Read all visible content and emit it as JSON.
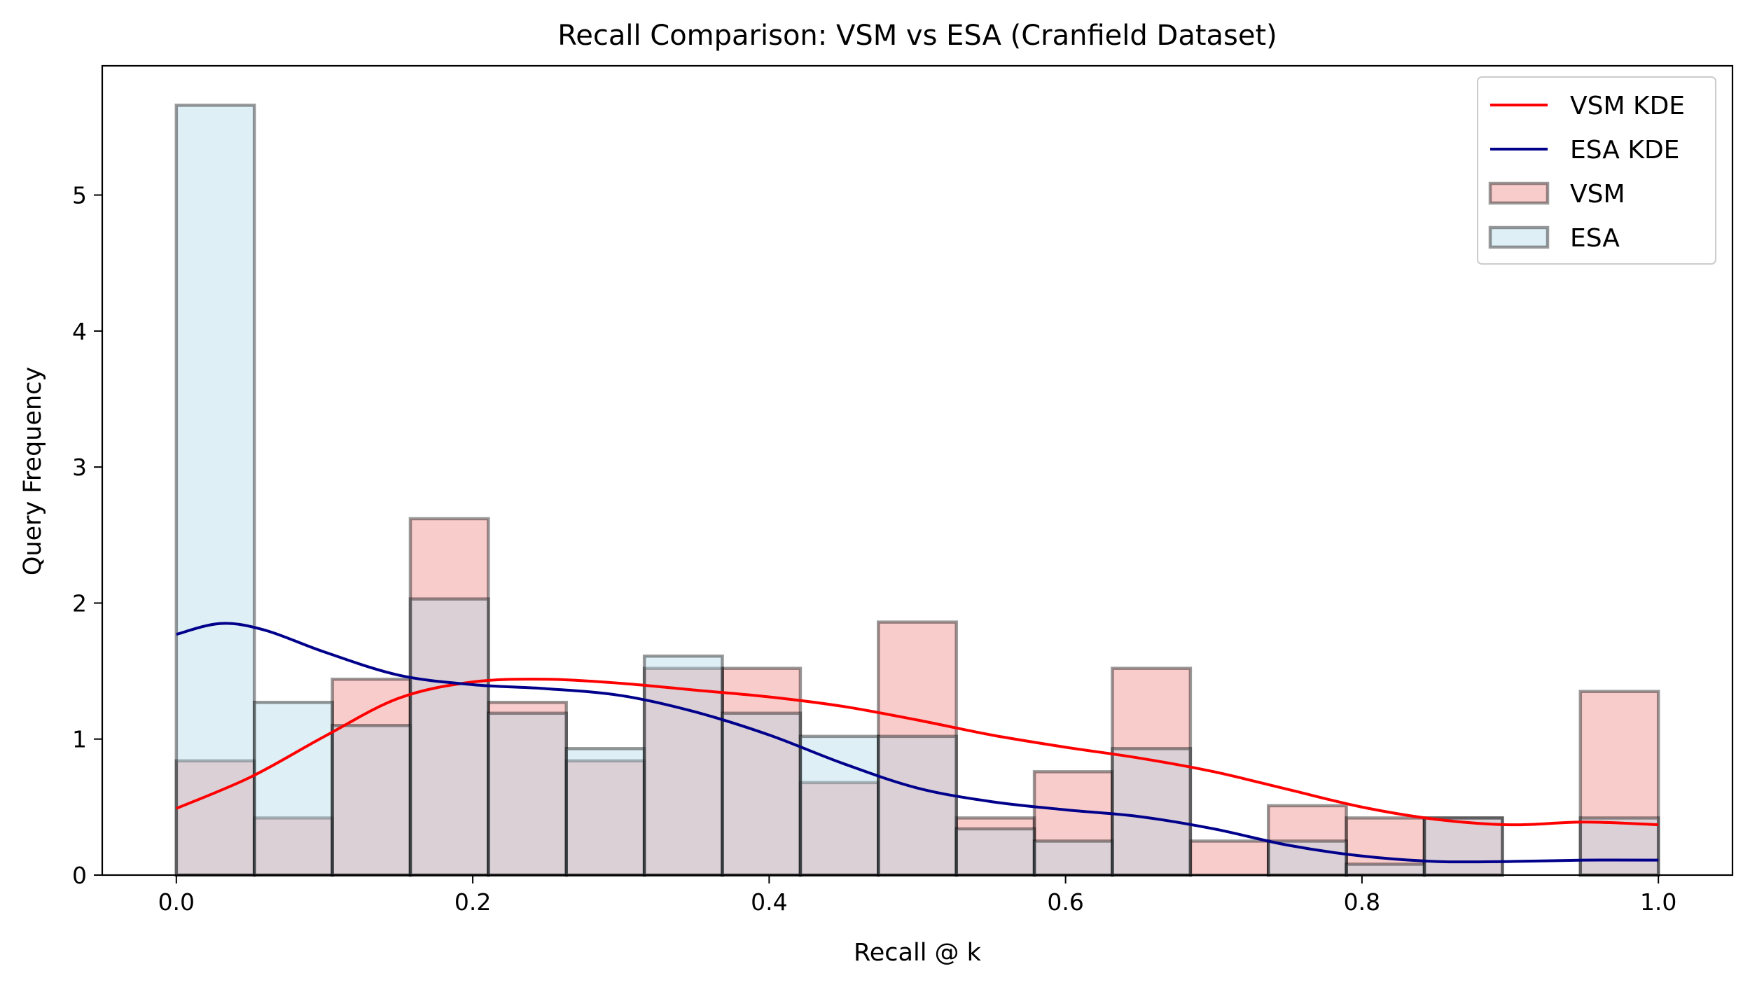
{
  "chart_data": {
    "type": "bar",
    "title": "Recall Comparison: VSM vs ESA (Cranfield Dataset)",
    "xlabel": "Recall @ k",
    "ylabel": "Query Frequency",
    "xlim": [
      -0.05,
      1.05
    ],
    "ylim": [
      0,
      5.95
    ],
    "xticks": [
      0.0,
      0.2,
      0.4,
      0.6,
      0.8,
      1.0
    ],
    "xtick_labels": [
      "0.0",
      "0.2",
      "0.4",
      "0.6",
      "0.8",
      "1.0"
    ],
    "yticks": [
      0,
      1,
      2,
      3,
      4,
      5
    ],
    "ytick_labels": [
      "0",
      "1",
      "2",
      "3",
      "4",
      "5"
    ],
    "grid": false,
    "legend_position": "top-right",
    "bins": 19,
    "bin_range": [
      0,
      1
    ],
    "histograms": [
      {
        "name": "VSM",
        "fill": "#f08080",
        "values": [
          0.84,
          0.42,
          1.44,
          2.62,
          1.27,
          0.84,
          1.52,
          1.52,
          0.68,
          1.86,
          0.42,
          0.76,
          1.52,
          0.25,
          0.51,
          0.42,
          0.42,
          0.0,
          1.35
        ]
      },
      {
        "name": "ESA",
        "fill": "#add8e6",
        "values": [
          5.66,
          1.27,
          1.1,
          2.03,
          1.19,
          0.93,
          1.61,
          1.19,
          1.02,
          1.02,
          0.34,
          0.25,
          0.93,
          0.0,
          0.25,
          0.08,
          0.42,
          0.0,
          0.42
        ]
      }
    ],
    "kde": [
      {
        "name": "VSM KDE",
        "color": "#ff0000",
        "x": [
          0.0,
          0.05,
          0.1,
          0.15,
          0.2,
          0.25,
          0.3,
          0.35,
          0.4,
          0.45,
          0.5,
          0.55,
          0.6,
          0.65,
          0.7,
          0.75,
          0.8,
          0.85,
          0.9,
          0.95,
          1.0
        ],
        "y": [
          0.49,
          0.72,
          1.02,
          1.3,
          1.42,
          1.44,
          1.41,
          1.36,
          1.31,
          1.24,
          1.14,
          1.03,
          0.94,
          0.86,
          0.76,
          0.63,
          0.5,
          0.41,
          0.37,
          0.39,
          0.37
        ]
      },
      {
        "name": "ESA KDE",
        "color": "#00008b",
        "x": [
          0.0,
          0.03,
          0.06,
          0.1,
          0.15,
          0.2,
          0.25,
          0.3,
          0.35,
          0.4,
          0.45,
          0.5,
          0.55,
          0.6,
          0.65,
          0.7,
          0.75,
          0.8,
          0.85,
          0.9,
          0.95,
          1.0
        ],
        "y": [
          1.77,
          1.85,
          1.8,
          1.64,
          1.47,
          1.4,
          1.37,
          1.32,
          1.2,
          1.03,
          0.82,
          0.64,
          0.54,
          0.48,
          0.43,
          0.34,
          0.22,
          0.14,
          0.1,
          0.1,
          0.11,
          0.11
        ]
      }
    ],
    "legend": [
      {
        "label": "VSM KDE",
        "kind": "line",
        "color": "#ff0000"
      },
      {
        "label": "ESA KDE",
        "kind": "line",
        "color": "#00008b"
      },
      {
        "label": "VSM",
        "kind": "patch",
        "color": "#f08080"
      },
      {
        "label": "ESA",
        "kind": "patch",
        "color": "#add8e6"
      }
    ]
  }
}
